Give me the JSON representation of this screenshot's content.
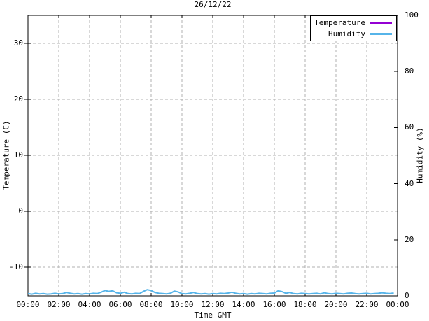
{
  "title": "26/12/22",
  "axes": {
    "x": {
      "label": "Time GMT",
      "tick_labels": [
        "00:00",
        "02:00",
        "04:00",
        "06:00",
        "08:00",
        "10:00",
        "12:00",
        "14:00",
        "16:00",
        "18:00",
        "20:00",
        "22:00",
        "00:00"
      ],
      "tick_hours": [
        0,
        2,
        4,
        6,
        8,
        10,
        12,
        14,
        16,
        18,
        20,
        22,
        24
      ]
    },
    "y_left": {
      "label": "Temperature (C)",
      "tick_labels": [
        "30",
        "20",
        "10",
        "0",
        "-10"
      ],
      "tick_values": [
        30,
        20,
        10,
        0,
        -10
      ]
    },
    "y_right": {
      "label": "Humidity (%)",
      "tick_labels": [
        "100",
        "80",
        "60",
        "40",
        "20",
        "0"
      ],
      "tick_values": [
        100,
        80,
        60,
        40,
        20,
        0
      ]
    }
  },
  "legend": {
    "entries": [
      {
        "label": "Temperature",
        "color": "#9400d3"
      },
      {
        "label": "Humidity",
        "color": "#56b4e9"
      }
    ]
  },
  "colors": {
    "grid": "#b0b0b0",
    "border": "#000000",
    "background": "#ffffff",
    "temperature": "#9400d3",
    "humidity": "#56b4e9"
  },
  "chart_data": {
    "type": "line",
    "title": "26/12/22",
    "xlabel": "Time GMT",
    "ylabel_left": "Temperature (C)",
    "ylabel_right": "Humidity (%)",
    "xlim_hours": [
      0,
      24
    ],
    "ylim_left": [
      -15.1,
      35.1
    ],
    "ylim_right": [
      0,
      100
    ],
    "grid": true,
    "legend_position": "top-right",
    "x_start": 0,
    "x_step": 0.25,
    "series": [
      {
        "name": "Temperature",
        "color": "#9400d3",
        "axis": "left",
        "values": []
      },
      {
        "name": "Humidity",
        "color": "#56b4e9",
        "axis": "right",
        "values": [
          0.8,
          0.6,
          0.9,
          0.7,
          0.8,
          0.6,
          0.7,
          0.9,
          0.7,
          0.8,
          1.2,
          0.9,
          0.7,
          0.8,
          0.6,
          0.8,
          0.7,
          0.9,
          0.8,
          1.3,
          1.9,
          1.6,
          1.8,
          1.1,
          0.9,
          1.3,
          0.8,
          0.7,
          0.9,
          0.8,
          1.6,
          2.2,
          1.9,
          1.2,
          0.9,
          0.8,
          0.7,
          0.9,
          1.7,
          1.4,
          0.8,
          0.7,
          0.9,
          1.2,
          0.8,
          0.7,
          0.8,
          0.6,
          0.8,
          0.7,
          0.9,
          0.8,
          1.0,
          1.3,
          0.9,
          0.7,
          0.8,
          0.6,
          0.8,
          0.7,
          0.9,
          0.8,
          0.7,
          0.9,
          1.0,
          1.8,
          1.5,
          0.9,
          1.2,
          0.8,
          0.7,
          0.9,
          0.8,
          0.7,
          0.8,
          0.9,
          0.7,
          1.1,
          0.8,
          0.7,
          0.9,
          0.8,
          0.7,
          0.9,
          1.0,
          0.8,
          0.7,
          0.8,
          0.9,
          0.7,
          0.8,
          0.9,
          1.1,
          0.9,
          0.8,
          1.0
        ]
      }
    ]
  }
}
